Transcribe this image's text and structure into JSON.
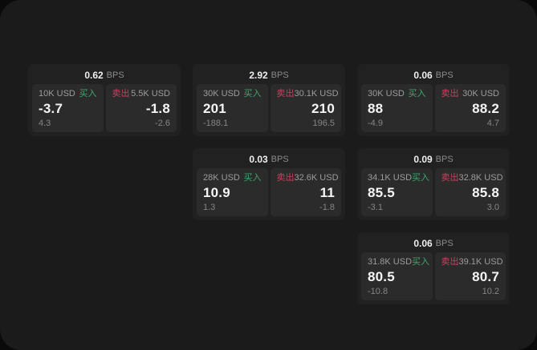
{
  "labels": {
    "buy": "买入",
    "sell": "卖出",
    "bps_unit": "BPS"
  },
  "colors": {
    "buy_green": "#3fa66c",
    "sell_red": "#c8405e",
    "window_bg": "#1b1b1c",
    "card_bg": "#212122",
    "panel_bg": "#2b2b2c"
  },
  "cards": [
    {
      "bps": "0.62",
      "buy": {
        "size": "10K USD",
        "price": "-3.7",
        "delta": "4.3"
      },
      "sell": {
        "size": "5.5K USD",
        "price": "-1.8",
        "delta": "-2.6"
      }
    },
    {
      "bps": "2.92",
      "buy": {
        "size": "30K USD",
        "price": "201",
        "delta": "-188.1"
      },
      "sell": {
        "size": "30.1K USD",
        "price": "210",
        "delta": "196.5"
      }
    },
    {
      "bps": "0.06",
      "buy": {
        "size": "30K USD",
        "price": "88",
        "delta": "-4.9"
      },
      "sell": {
        "size": "30K USD",
        "price": "88.2",
        "delta": "4.7"
      }
    },
    {
      "bps": "0.03",
      "buy": {
        "size": "28K USD",
        "price": "10.9",
        "delta": "1.3"
      },
      "sell": {
        "size": "32.6K USD",
        "price": "11",
        "delta": "-1.8"
      }
    },
    {
      "bps": "0.09",
      "buy": {
        "size": "34.1K USD",
        "price": "85.5",
        "delta": "-3.1"
      },
      "sell": {
        "size": "32.8K USD",
        "price": "85.8",
        "delta": "3.0"
      }
    },
    {
      "bps": "0.06",
      "buy": {
        "size": "31.8K USD",
        "price": "80.5",
        "delta": "-10.8"
      },
      "sell": {
        "size": "39.1K USD",
        "price": "80.7",
        "delta": "10.2"
      }
    }
  ]
}
